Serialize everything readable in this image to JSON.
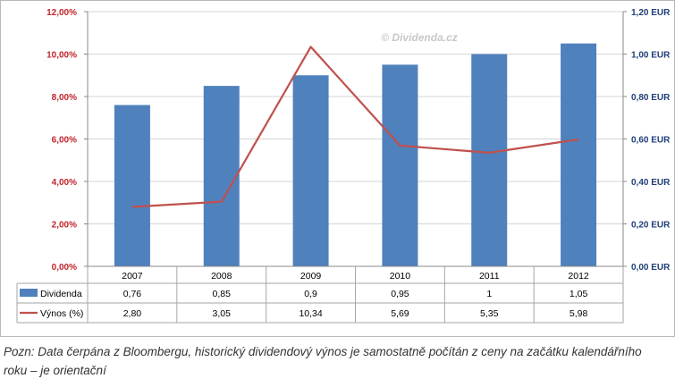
{
  "chart_data": {
    "type": "bar",
    "categories": [
      "2007",
      "2008",
      "2009",
      "2010",
      "2011",
      "2012"
    ],
    "series": [
      {
        "name": "Dividenda",
        "chart_type": "bar",
        "axis": "right",
        "color": "#4f81bd",
        "values": [
          0.76,
          0.85,
          0.9,
          0.95,
          1,
          1.05
        ],
        "table_labels": [
          "0,76",
          "0,85",
          "0,9",
          "0,95",
          "1",
          "1,05"
        ]
      },
      {
        "name": "Výnos (%)",
        "chart_type": "line",
        "axis": "left",
        "color": "#c0504d",
        "values": [
          2.8,
          3.05,
          10.34,
          5.69,
          5.35,
          5.98
        ],
        "table_labels": [
          "2,80",
          "3,05",
          "10,34",
          "5,69",
          "5,35",
          "5,98"
        ]
      }
    ],
    "y_left": {
      "ylim": [
        0,
        12
      ],
      "ticks": [
        0,
        2,
        4,
        6,
        8,
        10,
        12
      ],
      "tick_labels": [
        "0,00%",
        "2,00%",
        "4,00%",
        "6,00%",
        "8,00%",
        "10,00%",
        "12,00%"
      ],
      "color": "#c0242b"
    },
    "y_right": {
      "ylim": [
        0,
        1.2
      ],
      "ticks": [
        0,
        0.2,
        0.4,
        0.6,
        0.8,
        1.0,
        1.2
      ],
      "tick_labels": [
        "0,00 EUR",
        "0,20 EUR",
        "0,40 EUR",
        "0,60 EUR",
        "0,80 EUR",
        "1,00 EUR",
        "1,20 EUR"
      ],
      "color": "#1f3f78"
    },
    "grid": true,
    "data_table": true,
    "watermark": "© Dividenda.cz"
  },
  "footnote": "Pozn: Data čerpána z Bloombergu, historický dividendový výnos je samostatně počítán z ceny na začátku kalendářního roku – je orientační"
}
